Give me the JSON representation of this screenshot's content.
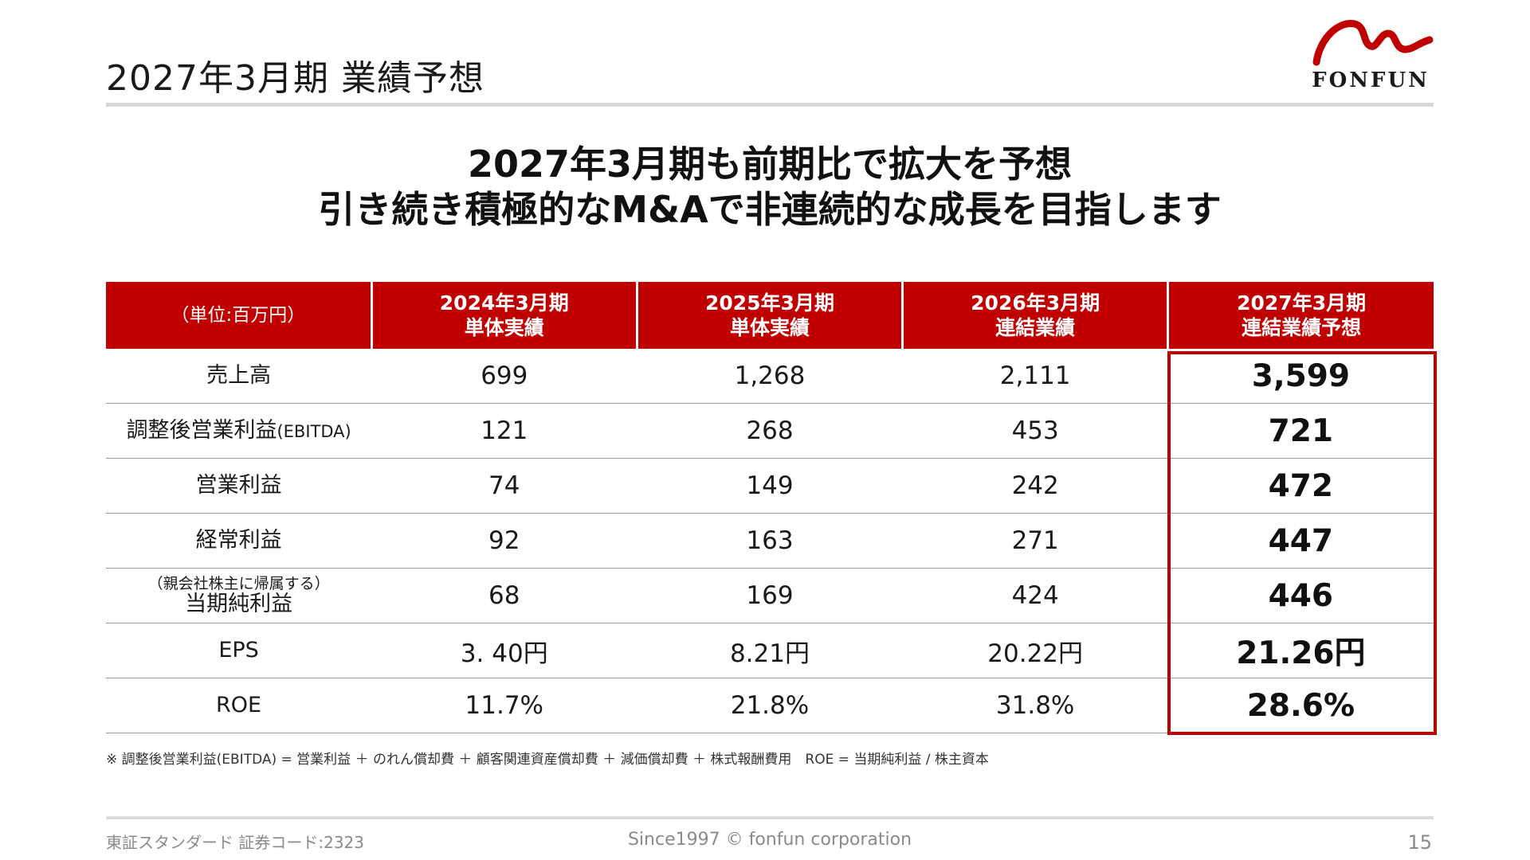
{
  "slide": {
    "title": "2027年3月期 業績予想",
    "logo_text": "FONFUN",
    "headline": [
      "2027年3月期も前期比で拡大を予想",
      "引き続き積極的なM&Aで非連続的な成長を目指します"
    ]
  },
  "table": {
    "unit_label": "（単位:百万円）",
    "columns": [
      {
        "period": "2024年3月期",
        "type": "単体実績"
      },
      {
        "period": "2025年3月期",
        "type": "単体実績"
      },
      {
        "period": "2026年3月期",
        "type": "連結業績"
      },
      {
        "period": "2027年3月期",
        "type": "連結業績予想"
      }
    ],
    "rows": [
      {
        "label": "売上高",
        "label_suffix": "",
        "label_sub": "",
        "values": [
          "699",
          "1,268",
          "2,111",
          "3,599"
        ]
      },
      {
        "label": "調整後営業利益",
        "label_suffix": "(EBITDA)",
        "label_sub": "",
        "values": [
          "121",
          "268",
          "453",
          "721"
        ]
      },
      {
        "label": "営業利益",
        "label_suffix": "",
        "label_sub": "",
        "values": [
          "74",
          "149",
          "242",
          "472"
        ]
      },
      {
        "label": "経常利益",
        "label_suffix": "",
        "label_sub": "",
        "values": [
          "92",
          "163",
          "271",
          "447"
        ]
      },
      {
        "label": "当期純利益",
        "label_suffix": "",
        "label_sub": "（親会社株主に帰属する）",
        "values": [
          "68",
          "169",
          "424",
          "446"
        ]
      },
      {
        "label": "EPS",
        "label_suffix": "",
        "label_sub": "",
        "values": [
          "3. 40円",
          "8.21円",
          "20.22円",
          "21.26円"
        ]
      },
      {
        "label": "ROE",
        "label_suffix": "",
        "label_sub": "",
        "values": [
          "11.7%",
          "21.8%",
          "31.8%",
          "28.6%"
        ]
      }
    ]
  },
  "footnote": "※ 調整後営業利益(EBITDA) = 営業利益 ＋ のれん償却費 ＋ 顧客関連資産償却費 ＋ 減価償却費 ＋ 株式報酬費用　ROE = 当期純利益 / 株主資本",
  "footer": {
    "left": "東証スタンダード 証券コード:2323",
    "center": "Since1997 © fonfun corporation",
    "page_number": "15"
  },
  "colors": {
    "accent_red": "#c00000",
    "rule_gray": "#d8d8d8",
    "footer_gray": "#8a8a8a"
  }
}
